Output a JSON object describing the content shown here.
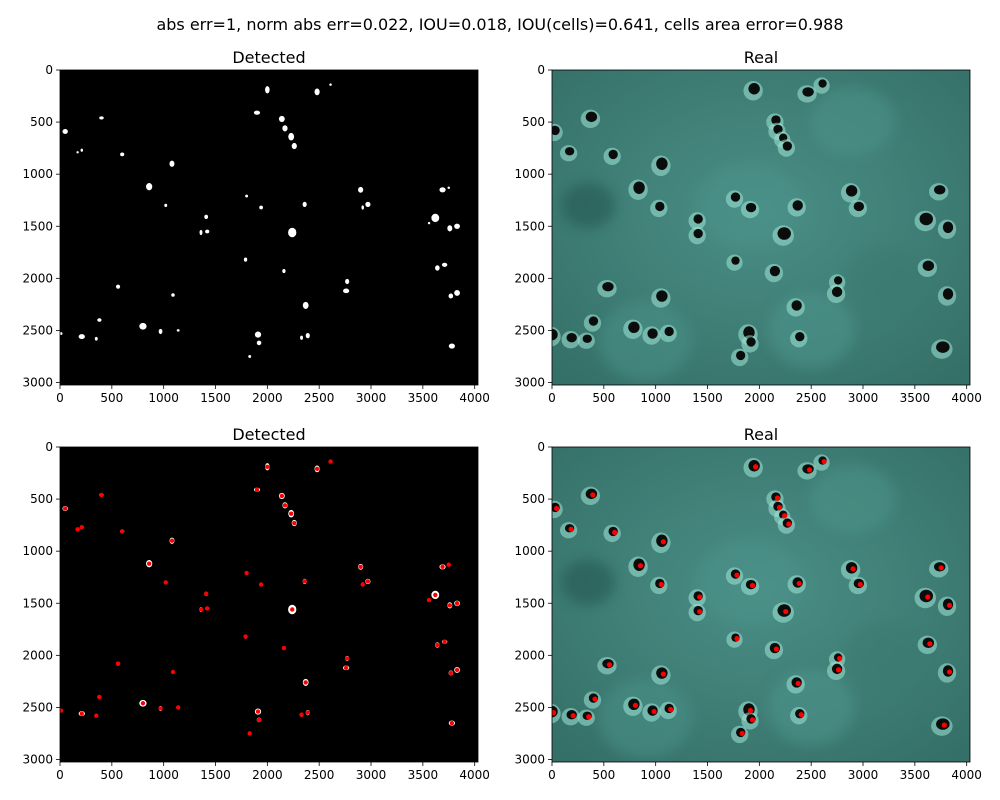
{
  "figure": {
    "suptitle": "abs err=1, norm abs err=0.022, IOU=0.018, IOU(cells)=0.641, cells area error=0.988"
  },
  "chart_data": [
    {
      "type": "image",
      "title": "Detected",
      "content": "binary detection mask: white blobs on black",
      "xlim": [
        0,
        4032
      ],
      "ylim": [
        3024,
        0
      ],
      "xticks": [
        0,
        500,
        1000,
        1500,
        2000,
        2500,
        3000,
        3500,
        4000
      ],
      "yticks": [
        0,
        500,
        1000,
        1500,
        2000,
        2500,
        3000
      ],
      "background": "#000000",
      "blob_color": "#ffffff",
      "show_markers": false,
      "blobs": [
        [
          2000,
          190,
          22,
          35
        ],
        [
          2480,
          210,
          25,
          32
        ],
        [
          2610,
          140,
          12,
          12
        ],
        [
          1900,
          410,
          30,
          20
        ],
        [
          2140,
          470,
          28,
          30
        ],
        [
          2170,
          560,
          25,
          30
        ],
        [
          2230,
          640,
          28,
          36
        ],
        [
          2260,
          730,
          25,
          30
        ],
        [
          400,
          460,
          22,
          15
        ],
        [
          50,
          590,
          26,
          24
        ],
        [
          170,
          790,
          11,
          11
        ],
        [
          210,
          770,
          12,
          15
        ],
        [
          600,
          810,
          20,
          18
        ],
        [
          1080,
          900,
          24,
          30
        ],
        [
          860,
          1120,
          30,
          35
        ],
        [
          1020,
          1300,
          14,
          16
        ],
        [
          1800,
          1210,
          14,
          14
        ],
        [
          1940,
          1320,
          18,
          18
        ],
        [
          2360,
          1290,
          20,
          25
        ],
        [
          2900,
          1150,
          25,
          28
        ],
        [
          2920,
          1320,
          12,
          20
        ],
        [
          2970,
          1290,
          25,
          25
        ],
        [
          3690,
          1150,
          30,
          25
        ],
        [
          3750,
          1130,
          12,
          12
        ],
        [
          3620,
          1420,
          38,
          40
        ],
        [
          3560,
          1470,
          10,
          10
        ],
        [
          3760,
          1520,
          24,
          30
        ],
        [
          3830,
          1500,
          28,
          25
        ],
        [
          1410,
          1410,
          18,
          20
        ],
        [
          1360,
          1560,
          14,
          24
        ],
        [
          1420,
          1550,
          20,
          18
        ],
        [
          2240,
          1560,
          40,
          46
        ],
        [
          1790,
          1820,
          16,
          20
        ],
        [
          2160,
          1930,
          16,
          20
        ],
        [
          2770,
          2030,
          20,
          25
        ],
        [
          2760,
          2120,
          30,
          22
        ],
        [
          3640,
          1900,
          22,
          26
        ],
        [
          3710,
          1870,
          26,
          20
        ],
        [
          3770,
          2170,
          22,
          24
        ],
        [
          3830,
          2140,
          28,
          28
        ],
        [
          560,
          2080,
          20,
          20
        ],
        [
          1090,
          2160,
          17,
          17
        ],
        [
          380,
          2400,
          20,
          17
        ],
        [
          2370,
          2260,
          28,
          34
        ],
        [
          800,
          2460,
          35,
          32
        ],
        [
          970,
          2510,
          18,
          25
        ],
        [
          1140,
          2500,
          14,
          12
        ],
        [
          1910,
          2540,
          30,
          30
        ],
        [
          1920,
          2620,
          22,
          22
        ],
        [
          2330,
          2570,
          14,
          20
        ],
        [
          2390,
          2550,
          20,
          25
        ],
        [
          10,
          2530,
          14,
          14
        ],
        [
          210,
          2560,
          30,
          24
        ],
        [
          350,
          2580,
          14,
          18
        ],
        [
          1830,
          2750,
          14,
          14
        ],
        [
          3780,
          2650,
          30,
          25
        ]
      ]
    },
    {
      "type": "image",
      "title": "Real",
      "content": "microscope photo: dark round cells on teal background",
      "xlim": [
        0,
        4032
      ],
      "ylim": [
        3024,
        0
      ],
      "xticks": [
        0,
        500,
        1000,
        1500,
        2000,
        2500,
        3000,
        3500,
        4000
      ],
      "yticks": [
        0,
        500,
        1000,
        1500,
        2000,
        2500,
        3000
      ],
      "background": "#3f8178",
      "cell_color": "#0b0d0c",
      "show_markers": false,
      "cells": [
        [
          1950,
          180,
          55,
          55
        ],
        [
          2470,
          210,
          55,
          45
        ],
        [
          2610,
          130,
          40,
          40
        ],
        [
          2160,
          480,
          45,
          45
        ],
        [
          2180,
          570,
          45,
          45
        ],
        [
          2230,
          650,
          40,
          40
        ],
        [
          2270,
          730,
          45,
          45
        ],
        [
          380,
          450,
          55,
          50
        ],
        [
          30,
          580,
          45,
          45
        ],
        [
          170,
          780,
          45,
          40
        ],
        [
          590,
          810,
          45,
          45
        ],
        [
          1060,
          900,
          55,
          60
        ],
        [
          840,
          1130,
          55,
          60
        ],
        [
          1040,
          1310,
          45,
          45
        ],
        [
          1770,
          1220,
          45,
          45
        ],
        [
          1920,
          1320,
          50,
          45
        ],
        [
          2370,
          1300,
          50,
          50
        ],
        [
          2890,
          1160,
          55,
          55
        ],
        [
          2960,
          1310,
          50,
          45
        ],
        [
          3740,
          1150,
          55,
          45
        ],
        [
          3610,
          1430,
          65,
          60
        ],
        [
          3820,
          1510,
          50,
          55
        ],
        [
          1410,
          1430,
          45,
          45
        ],
        [
          1410,
          1570,
          45,
          45
        ],
        [
          2240,
          1570,
          65,
          60
        ],
        [
          1770,
          1830,
          40,
          40
        ],
        [
          2150,
          1930,
          50,
          50
        ],
        [
          2760,
          2020,
          40,
          40
        ],
        [
          2750,
          2130,
          50,
          50
        ],
        [
          3630,
          1880,
          55,
          50
        ],
        [
          3820,
          2150,
          50,
          55
        ],
        [
          540,
          2080,
          55,
          45
        ],
        [
          1060,
          2170,
          55,
          55
        ],
        [
          400,
          2410,
          45,
          45
        ],
        [
          2360,
          2260,
          50,
          50
        ],
        [
          790,
          2470,
          55,
          55
        ],
        [
          970,
          2530,
          50,
          50
        ],
        [
          1130,
          2510,
          45,
          45
        ],
        [
          1900,
          2520,
          55,
          60
        ],
        [
          1920,
          2610,
          45,
          45
        ],
        [
          2390,
          2560,
          45,
          45
        ],
        [
          0,
          2540,
          55,
          55
        ],
        [
          190,
          2570,
          50,
          45
        ],
        [
          340,
          2580,
          45,
          40
        ],
        [
          1820,
          2740,
          45,
          45
        ],
        [
          3770,
          2660,
          65,
          55
        ]
      ]
    },
    {
      "type": "image",
      "title": "Detected",
      "content": "binary detection mask with red detection markers",
      "xlim": [
        0,
        4032
      ],
      "ylim": [
        3024,
        0
      ],
      "xticks": [
        0,
        500,
        1000,
        1500,
        2000,
        2500,
        3000,
        3500,
        4000
      ],
      "yticks": [
        0,
        500,
        1000,
        1500,
        2000,
        2500,
        3000
      ],
      "background": "#000000",
      "blob_color": "#ffffff",
      "marker_color": "#ff0000",
      "show_markers": true
    },
    {
      "type": "image",
      "title": "Real",
      "content": "microscope photo with red detection markers",
      "xlim": [
        0,
        4032
      ],
      "ylim": [
        3024,
        0
      ],
      "xticks": [
        0,
        500,
        1000,
        1500,
        2000,
        2500,
        3000,
        3500,
        4000
      ],
      "yticks": [
        0,
        500,
        1000,
        1500,
        2000,
        2500,
        3000
      ],
      "background": "#3f8178",
      "cell_color": "#0b0d0c",
      "marker_color": "#ff0000",
      "show_markers": true
    }
  ]
}
